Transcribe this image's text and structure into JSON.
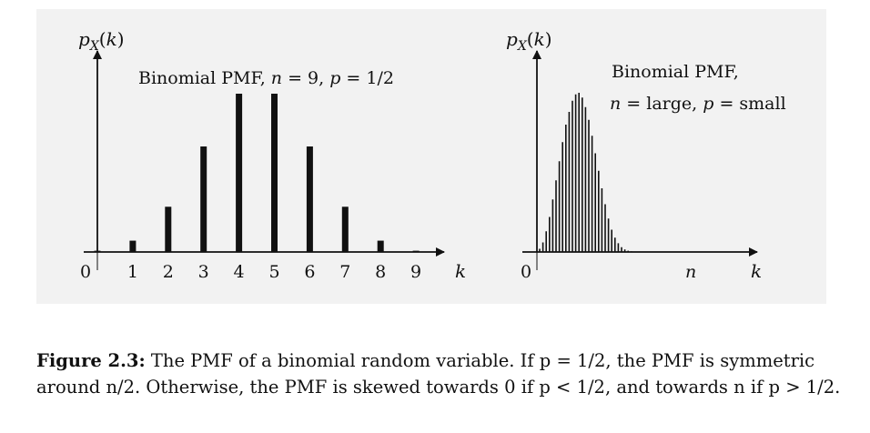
{
  "chart_data": [
    {
      "type": "bar",
      "ylabel": "p_X(k)",
      "xlabel": "k",
      "annotation": "Binomial PMF,  n = 9, p = 1/2",
      "n": 9,
      "p": 0.5,
      "categories": [
        "0",
        "1",
        "2",
        "3",
        "4",
        "5",
        "6",
        "7",
        "8",
        "9"
      ],
      "values": [
        0.00195,
        0.01758,
        0.07031,
        0.16406,
        0.24609,
        0.24609,
        0.16406,
        0.07031,
        0.01758,
        0.00195
      ],
      "ylim": [
        0,
        0.26
      ]
    },
    {
      "type": "bar",
      "ylabel": "p_X(k)",
      "xlabel": "k",
      "x_marker": "n",
      "origin_label": "0",
      "annotation_line1": "Binomial PMF,",
      "annotation_line2": "n = large, p = small",
      "values": [
        0.02,
        0.06,
        0.13,
        0.22,
        0.33,
        0.45,
        0.57,
        0.69,
        0.8,
        0.88,
        0.95,
        0.99,
        1.0,
        0.97,
        0.91,
        0.83,
        0.73,
        0.62,
        0.51,
        0.4,
        0.3,
        0.21,
        0.14,
        0.09,
        0.055,
        0.03,
        0.016,
        0.008,
        0.004,
        0.002
      ],
      "ylim": [
        0,
        1.05
      ]
    }
  ],
  "caption": {
    "label": "Figure 2.3:",
    "text": "The PMF of a binomial random variable. If p = 1/2, the PMF is symmetric around n/2. Otherwise, the PMF is skewed towards 0 if p < 1/2, and towards n if p > 1/2."
  }
}
